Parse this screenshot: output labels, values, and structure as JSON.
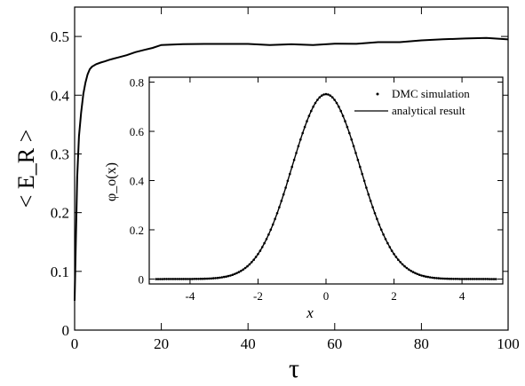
{
  "chart_data": [
    {
      "type": "line",
      "xlabel": "τ",
      "ylabel": "< E_R >",
      "xlim": [
        0,
        100
      ],
      "ylim": [
        0,
        0.55
      ],
      "x_ticks": [
        "0",
        "20",
        "40",
        "60",
        "80",
        "100"
      ],
      "y_ticks": [
        "0",
        "0.1",
        "0.2",
        "0.3",
        "0.4",
        "0.5"
      ],
      "grid": false,
      "series": [
        {
          "x": [
            0,
            0.3,
            0.6,
            1,
            1.5,
            2,
            2.5,
            3,
            3.5,
            4,
            5,
            6,
            7,
            8,
            10,
            12,
            14,
            16,
            18,
            20,
            25,
            30,
            35,
            40,
            45,
            50,
            55,
            60,
            65,
            70,
            75,
            80,
            85,
            90,
            95,
            100
          ],
          "values": [
            0.05,
            0.16,
            0.26,
            0.33,
            0.37,
            0.4,
            0.42,
            0.435,
            0.445,
            0.45,
            0.455,
            0.458,
            0.46,
            0.462,
            0.465,
            0.468,
            0.472,
            0.475,
            0.478,
            0.483,
            0.485,
            0.486,
            0.487,
            0.488,
            0.487,
            0.489,
            0.488,
            0.49,
            0.489,
            0.491,
            0.49,
            0.492,
            0.493,
            0.494,
            0.495,
            0.495
          ]
        }
      ]
    },
    {
      "type": "line",
      "xlabel": "x",
      "ylabel": "φ_o(x)",
      "xlim": [
        -5.2,
        5.2
      ],
      "ylim": [
        -0.02,
        0.82
      ],
      "x_ticks": [
        "-4",
        "-2",
        "0",
        "2",
        "4"
      ],
      "y_ticks": [
        "0",
        "0.2",
        "0.4",
        "0.6",
        "0.8"
      ],
      "grid": false,
      "legend_position": "top-right",
      "series": [
        {
          "name": "DMC simulation",
          "style": "dots",
          "function": "pi^(-1/4) * exp(-x^2/2)",
          "x_range": [
            -5,
            5
          ]
        },
        {
          "name": "analytical result",
          "style": "line",
          "function": "pi^(-1/4) * exp(-x^2/2)",
          "x_range": [
            -5,
            5
          ]
        }
      ]
    }
  ]
}
